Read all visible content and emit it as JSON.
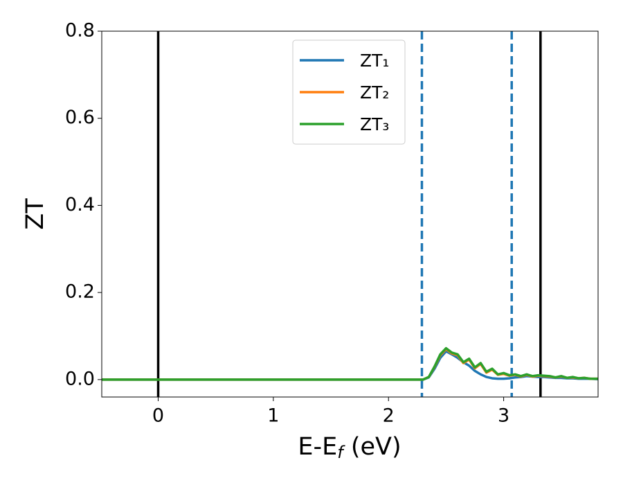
{
  "chart_data": {
    "type": "line",
    "xlabel": [
      "E-E",
      "f",
      " (eV)"
    ],
    "ylabel": "ZT",
    "x": [
      -0.5,
      2.2,
      2.3,
      2.35,
      2.4,
      2.45,
      2.5,
      2.55,
      2.6,
      2.65,
      2.7,
      2.75,
      2.8,
      2.85,
      2.9,
      2.95,
      3.0,
      3.05,
      3.1,
      3.15,
      3.2,
      3.25,
      3.3,
      3.35,
      3.4,
      3.45,
      3.5,
      3.55,
      3.6,
      3.65,
      3.7,
      3.75,
      3.82
    ],
    "series": [
      {
        "name": "ZT₁",
        "color": "#1f77b4",
        "values": [
          0,
          0,
          0,
          0.005,
          0.025,
          0.05,
          0.065,
          0.058,
          0.05,
          0.04,
          0.032,
          0.02,
          0.012,
          0.006,
          0.003,
          0.002,
          0.002,
          0.003,
          0.005,
          0.006,
          0.008,
          0.007,
          0.006,
          0.006,
          0.005,
          0.004,
          0.004,
          0.003,
          0.003,
          0.002,
          0.002,
          0.002,
          0.001
        ]
      },
      {
        "name": "ZT₂",
        "color": "#ff7f0e",
        "values": [
          0,
          0,
          0,
          0.006,
          0.029,
          0.056,
          0.07,
          0.06,
          0.056,
          0.038,
          0.046,
          0.026,
          0.036,
          0.016,
          0.023,
          0.011,
          0.013,
          0.009,
          0.011,
          0.007,
          0.011,
          0.007,
          0.009,
          0.008,
          0.007,
          0.005,
          0.007,
          0.004,
          0.005,
          0.003,
          0.004,
          0.002,
          0.002
        ]
      },
      {
        "name": "ZT₃",
        "color": "#2ca02c",
        "values": [
          0,
          0,
          0,
          0.006,
          0.03,
          0.058,
          0.072,
          0.062,
          0.058,
          0.04,
          0.048,
          0.028,
          0.038,
          0.018,
          0.025,
          0.012,
          0.015,
          0.01,
          0.012,
          0.008,
          0.012,
          0.008,
          0.01,
          0.009,
          0.008,
          0.005,
          0.008,
          0.004,
          0.006,
          0.003,
          0.004,
          0.002,
          0.002
        ]
      }
    ],
    "vlines": [
      {
        "x": 0,
        "color": "#000000",
        "style": "solid"
      },
      {
        "x": 3.32,
        "color": "#000000",
        "style": "solid"
      },
      {
        "x": 2.29,
        "color": "#1f77b4",
        "style": "dashed"
      },
      {
        "x": 3.07,
        "color": "#1f77b4",
        "style": "dashed"
      }
    ],
    "xlim": [
      -0.49,
      3.82
    ],
    "ylim": [
      -0.04,
      0.8
    ],
    "xticks": [
      0,
      1,
      2,
      3
    ],
    "yticks": [
      {
        "value": 0,
        "label": "0.0"
      },
      0.2,
      0.4,
      0.6,
      0.8
    ],
    "legend": "upper center"
  }
}
